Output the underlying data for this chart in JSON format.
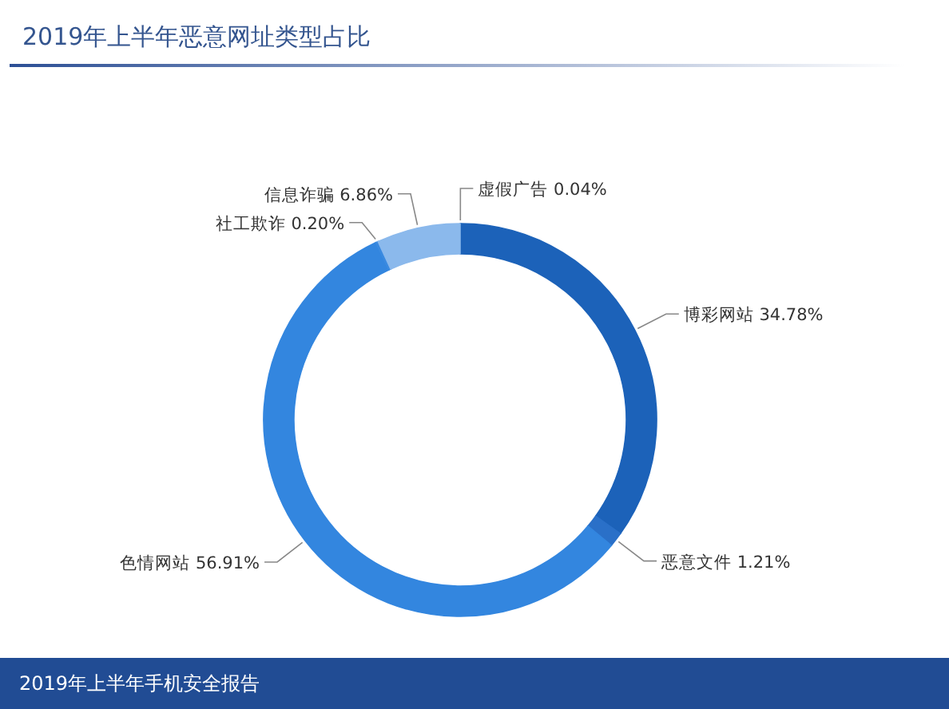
{
  "chart_data": {
    "type": "donut",
    "title": "2019年上半年恶意网址类型占比",
    "categories": [
      "虚假广告",
      "博彩网站",
      "恶意文件",
      "色情网站",
      "社工欺诈",
      "信息诈骗"
    ],
    "values": [
      0.04,
      34.78,
      1.21,
      56.91,
      0.2,
      6.86
    ],
    "colors": [
      "#5b9be6",
      "#1c62b9",
      "#2a70c8",
      "#3386df",
      "#3a8ae0",
      "#8bb9ec"
    ],
    "value_labels": [
      "0.04%",
      "34.78%",
      "1.21%",
      "56.91%",
      "0.20%",
      "6.86%"
    ],
    "annotations": [
      "2019年上半年手机安全报告"
    ]
  }
}
